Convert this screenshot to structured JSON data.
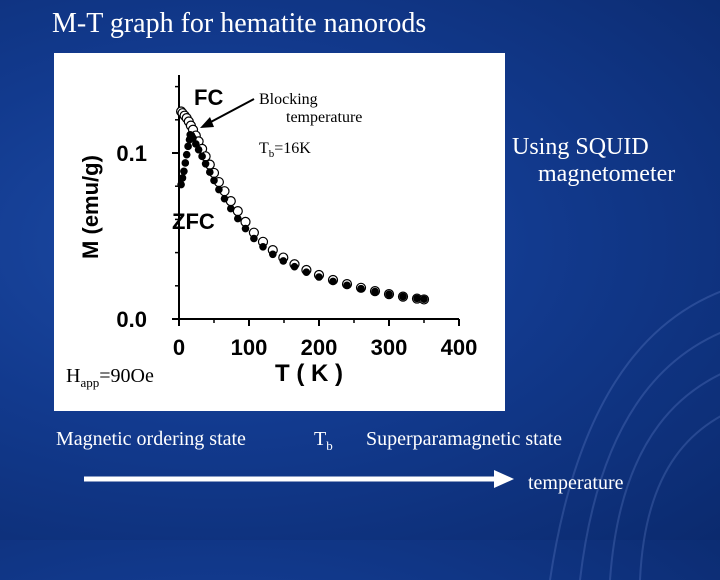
{
  "slide": {
    "title": "M-T graph for hematite nanorods",
    "side_note_line1": "Using SQUID",
    "side_note_line2": "magnetometer"
  },
  "bottom": {
    "state_left": "Magnetic ordering state",
    "tb_main": "T",
    "tb_sub": "b",
    "state_right": "Superparamagnetic state",
    "arrow_label": "temperature"
  },
  "colors": {
    "text": "#ffffff",
    "panel_bg": "#ffffff",
    "ink": "#000000"
  },
  "chart_data": {
    "type": "scatter",
    "xlabel": "T ( K )",
    "ylabel": "M (emu/g)",
    "xlim": [
      0,
      400
    ],
    "ylim": [
      0.0,
      0.147
    ],
    "x_ticks": [
      0,
      100,
      200,
      300,
      400
    ],
    "x_tick_labels": [
      "0",
      "100",
      "200",
      "300",
      "400"
    ],
    "y_ticks": [
      0.0,
      0.1
    ],
    "y_tick_labels": [
      "0.0",
      "0.1"
    ],
    "grid": false,
    "series": [
      {
        "name": "FC",
        "marker": "open-circle",
        "x": [
          3,
          5,
          8,
          11,
          14,
          17,
          20,
          24,
          28,
          33,
          38,
          44,
          50,
          57,
          65,
          74,
          84,
          95,
          107,
          120,
          134,
          149,
          165,
          182,
          200,
          220,
          240,
          260,
          280,
          300,
          320,
          340,
          350
        ],
        "y": [
          0.125,
          0.124,
          0.1225,
          0.121,
          0.119,
          0.1165,
          0.114,
          0.1105,
          0.107,
          0.1025,
          0.098,
          0.093,
          0.088,
          0.0825,
          0.077,
          0.071,
          0.065,
          0.0585,
          0.052,
          0.0465,
          0.0415,
          0.037,
          0.033,
          0.0295,
          0.0265,
          0.0235,
          0.021,
          0.0188,
          0.0168,
          0.015,
          0.0135,
          0.0123,
          0.0118
        ]
      },
      {
        "name": "ZFC",
        "marker": "filled-circle",
        "x": [
          3,
          5,
          7,
          9,
          11,
          13,
          15,
          16,
          18,
          20,
          24,
          28,
          33,
          38,
          44,
          50,
          57,
          65,
          74,
          84,
          95,
          107,
          120,
          134,
          149,
          165,
          182,
          200,
          220,
          240,
          260,
          280,
          300,
          320,
          340,
          350
        ],
        "y": [
          0.081,
          0.085,
          0.089,
          0.094,
          0.099,
          0.104,
          0.108,
          0.111,
          0.1105,
          0.109,
          0.1055,
          0.102,
          0.098,
          0.0935,
          0.0885,
          0.0835,
          0.078,
          0.0725,
          0.0665,
          0.0605,
          0.0545,
          0.0485,
          0.0435,
          0.039,
          0.035,
          0.0315,
          0.0282,
          0.0253,
          0.0226,
          0.0203,
          0.0183,
          0.0165,
          0.0149,
          0.0135,
          0.0124,
          0.0119
        ]
      }
    ],
    "annotations": {
      "fc_label": "FC",
      "zfc_label": "ZFC",
      "blocking_line1": "Blocking",
      "blocking_line2": "temperature",
      "tb_main": "T",
      "tb_sub": "b",
      "tb_value": "=16K",
      "happ_main": "H",
      "happ_sub": "app",
      "happ_value": "=90Oe"
    }
  }
}
